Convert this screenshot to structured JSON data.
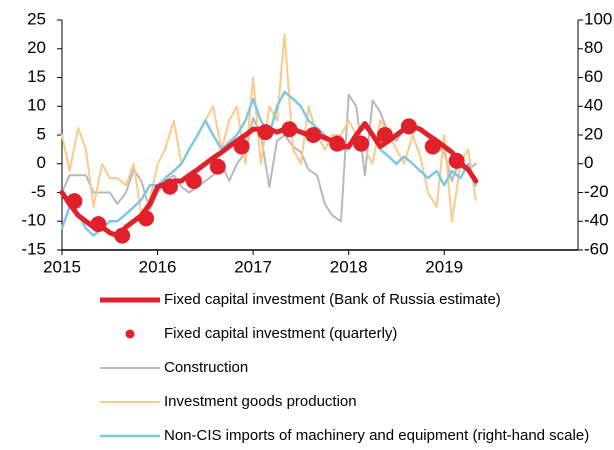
{
  "chart_data": {
    "type": "line",
    "x": [
      2015,
      2015.08,
      2015.17,
      2015.25,
      2015.33,
      2015.42,
      2015.5,
      2015.58,
      2015.67,
      2015.75,
      2015.83,
      2015.92,
      2016,
      2016.08,
      2016.17,
      2016.25,
      2016.33,
      2016.42,
      2016.5,
      2016.58,
      2016.67,
      2016.75,
      2016.83,
      2016.92,
      2017,
      2017.08,
      2017.17,
      2017.25,
      2017.33,
      2017.42,
      2017.5,
      2017.58,
      2017.67,
      2017.75,
      2017.83,
      2017.92,
      2018,
      2018.08,
      2018.17,
      2018.25,
      2018.33,
      2018.42,
      2018.5,
      2018.58,
      2018.67,
      2018.75,
      2018.83,
      2018.92,
      2019,
      2019.08,
      2019.17,
      2019.25,
      2019.33
    ],
    "xlim": [
      2015,
      2020.4
    ],
    "xticks": [
      2015,
      2016,
      2017,
      2018,
      2019
    ],
    "ylim": [
      -15,
      25
    ],
    "yticks": [
      -15,
      -10,
      -5,
      0,
      5,
      10,
      15,
      20,
      25
    ],
    "y2lim": [
      -60,
      100
    ],
    "y2ticks": [
      -60,
      -40,
      -20,
      0,
      20,
      40,
      60,
      80,
      100
    ],
    "grid": false,
    "series": [
      {
        "name": "Construction",
        "color": "#b8b8b8",
        "kind": "line",
        "width": 2,
        "values": [
          -5,
          -2,
          -2,
          -2,
          -5,
          -5,
          -5,
          -7,
          -5,
          -1,
          -3,
          -8,
          -5,
          -3,
          -2,
          -4,
          -5,
          -4,
          -3,
          -2,
          0,
          -3,
          0,
          2,
          8,
          5,
          -4,
          4,
          5,
          3,
          2,
          -1,
          -2,
          -7,
          -9,
          -10,
          12,
          10,
          -2,
          11,
          9,
          5,
          4,
          6,
          6,
          6,
          5,
          3,
          2,
          -3,
          1,
          -1,
          0
        ]
      },
      {
        "name": "Investment goods production",
        "color": "#fdc98a",
        "kind": "line",
        "width": 2,
        "axis": "y2",
        "values": [
          20,
          -5,
          25,
          10,
          -30,
          0,
          -10,
          -10,
          -15,
          0,
          -35,
          -25,
          0,
          10,
          30,
          0,
          10,
          20,
          30,
          40,
          10,
          30,
          40,
          0,
          60,
          0,
          40,
          30,
          90,
          10,
          0,
          40,
          20,
          10,
          20,
          20,
          30,
          20,
          10,
          0,
          30,
          20,
          10,
          0,
          20,
          5,
          -20,
          -30,
          20,
          -40,
          0,
          10,
          -25
        ]
      },
      {
        "name": "Non-CIS imports of machinery and equipment (right-hand scale)",
        "color": "#7ec8e3",
        "kind": "line",
        "width": 2.5,
        "axis": "y2",
        "values": [
          -45,
          -30,
          -35,
          -45,
          -50,
          -45,
          -40,
          -40,
          -35,
          -30,
          -25,
          -15,
          -15,
          -10,
          -5,
          0,
          10,
          20,
          30,
          20,
          10,
          15,
          20,
          30,
          45,
          30,
          20,
          40,
          50,
          45,
          40,
          30,
          25,
          20,
          15,
          10,
          10,
          20,
          25,
          20,
          10,
          5,
          0,
          5,
          0,
          -5,
          -10,
          -5,
          -15,
          -5,
          -10,
          0,
          -15
        ]
      },
      {
        "name": "Fixed capital investment (Bank of Russia estimate)",
        "color": "#e0202a",
        "kind": "line",
        "width": 5,
        "values": [
          -5,
          -7,
          -9,
          -10,
          -11,
          -11,
          -12,
          -12.5,
          -11,
          -10,
          -9,
          -7,
          -4,
          -3.5,
          -3,
          -3,
          -2,
          -1,
          0,
          1,
          2,
          3,
          4,
          5,
          6,
          6,
          6,
          5.5,
          6,
          6,
          5.5,
          5,
          5,
          4.5,
          4,
          3,
          3,
          5,
          7,
          5,
          3,
          4,
          5,
          6,
          6.5,
          6,
          5,
          4,
          3,
          2,
          0,
          -1,
          -3
        ]
      },
      {
        "name": "Fixed capital investment (quarterly)",
        "color": "#e0202a",
        "kind": "markers",
        "x": [
          2015.13,
          2015.38,
          2015.63,
          2015.88,
          2016.13,
          2016.38,
          2016.63,
          2016.88,
          2017.13,
          2017.38,
          2017.63,
          2017.88,
          2018.13,
          2018.38,
          2018.63,
          2018.88,
          2019.13
        ],
        "values": [
          -6.5,
          -10.5,
          -12.5,
          -9.5,
          -4,
          -3,
          -0.5,
          3,
          5.5,
          6,
          5,
          3.5,
          3.5,
          5,
          6.5,
          3,
          0.5
        ]
      }
    ],
    "legend_order": [
      3,
      4,
      0,
      1,
      2
    ]
  }
}
